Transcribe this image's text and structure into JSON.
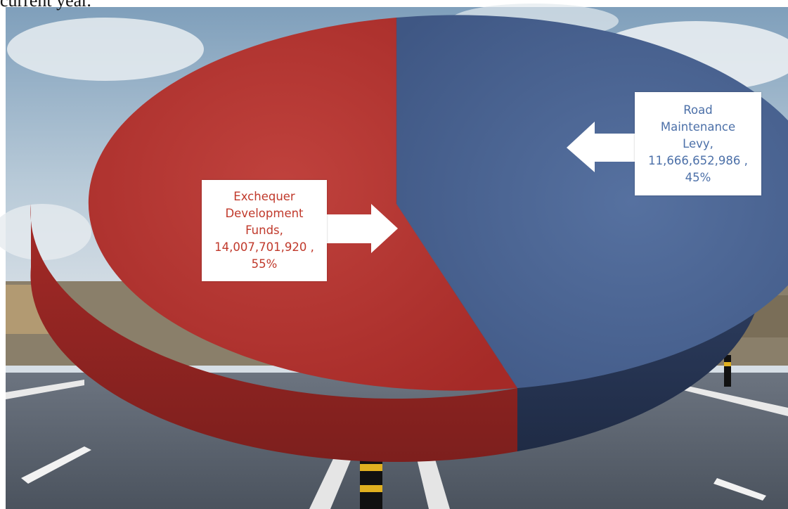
{
  "caption_text": "current year.",
  "colors": {
    "exchequer": "#b3302c",
    "exchequer_side": "#8c2220",
    "rml": "#4a6491",
    "rml_side": "#2c3b5c",
    "sky": "#9fb8cc",
    "road": "#5b6470"
  },
  "chart_data": {
    "type": "pie",
    "style": "3d",
    "title": "",
    "slices": [
      {
        "label": "Exchequer Development Funds",
        "value": 14007701920,
        "percent": 55,
        "color": "#b3302c"
      },
      {
        "label": "Road Maintenance Levy",
        "value": 11666652986,
        "percent": 45,
        "color": "#4a6491"
      }
    ],
    "data_labels": [
      "Exchequer\nDevelopment\nFunds,\n14,007,701,920 ,\n55%",
      "Road\nMaintenance\nLevy,\n11,666,652,986 ,\n45%"
    ],
    "legend": "none"
  }
}
